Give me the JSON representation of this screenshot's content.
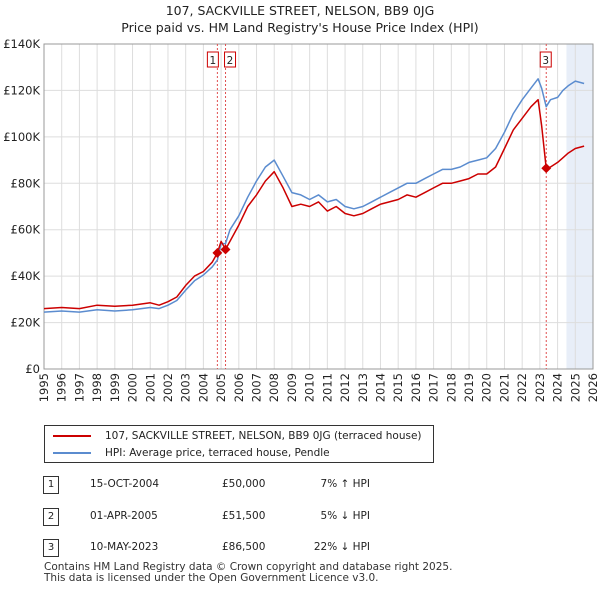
{
  "title": "107, SACKVILLE STREET, NELSON, BB9 0JG",
  "subtitle": "Price paid vs. HM Land Registry's House Price Index (HPI)",
  "colors": {
    "property": "#cc0000",
    "hpi": "#5b8ccf",
    "forecast_shade": "#e8eef8",
    "grid": "#dddddd"
  },
  "chart_data": {
    "type": "line",
    "title": "107, SACKVILLE STREET, NELSON, BB9 0JG",
    "subtitle": "Price paid vs. HM Land Registry's House Price Index (HPI)",
    "xlim": [
      1995,
      2026
    ],
    "ylim": [
      0,
      140000
    ],
    "y_ticks": [
      0,
      20000,
      40000,
      60000,
      80000,
      100000,
      120000,
      140000
    ],
    "y_tick_labels": [
      "£0",
      "£20K",
      "£40K",
      "£60K",
      "£80K",
      "£100K",
      "£120K",
      "£140K"
    ],
    "x_ticks": [
      1995,
      1996,
      1997,
      1998,
      1999,
      2000,
      2001,
      2002,
      2003,
      2004,
      2005,
      2006,
      2007,
      2008,
      2009,
      2010,
      2011,
      2012,
      2013,
      2014,
      2015,
      2016,
      2017,
      2018,
      2019,
      2020,
      2021,
      2022,
      2023,
      2024,
      2025,
      2026
    ],
    "x_tick_labels": [
      "1995",
      "1996",
      "1997",
      "1998",
      "1999",
      "2000",
      "2001",
      "2002",
      "2003",
      "2004",
      "2005",
      "2006",
      "2007",
      "2008",
      "2009",
      "2010",
      "2011",
      "2012",
      "2013",
      "2014",
      "2015",
      "2016",
      "2017",
      "2018",
      "2019",
      "2020",
      "2021",
      "2022",
      "2023",
      "2024",
      "2025",
      "2026"
    ],
    "forecast_region": [
      2024.5,
      2026
    ],
    "grid": true,
    "series": [
      {
        "name": "107, SACKVILLE STREET, NELSON, BB9 0JG (terraced house)",
        "color": "#cc0000",
        "x": [
          1995.0,
          1996.0,
          1997.0,
          1998.0,
          1999.0,
          2000.0,
          2001.0,
          2001.5,
          2002.0,
          2002.5,
          2003.0,
          2003.5,
          2004.0,
          2004.5,
          2004.79,
          2005.0,
          2005.25,
          2005.5,
          2006.0,
          2006.5,
          2007.0,
          2007.5,
          2008.0,
          2008.5,
          2009.0,
          2009.5,
          2010.0,
          2010.5,
          2011.0,
          2011.5,
          2012.0,
          2012.5,
          2013.0,
          2013.5,
          2014.0,
          2014.5,
          2015.0,
          2015.5,
          2016.0,
          2016.5,
          2017.0,
          2017.5,
          2018.0,
          2018.5,
          2019.0,
          2019.5,
          2020.0,
          2020.5,
          2021.0,
          2021.5,
          2022.0,
          2022.5,
          2022.9,
          2023.1,
          2023.36,
          2023.6,
          2024.0,
          2024.3,
          2024.6,
          2025.0,
          2025.5
        ],
        "values": [
          26000,
          26500,
          26000,
          27500,
          27000,
          27500,
          28500,
          27500,
          29000,
          31000,
          36000,
          40000,
          42000,
          46000,
          50000,
          55000,
          51500,
          55000,
          62000,
          70000,
          75000,
          81000,
          85000,
          78000,
          70000,
          71000,
          70000,
          72000,
          68000,
          70000,
          67000,
          66000,
          67000,
          69000,
          71000,
          72000,
          73000,
          75000,
          74000,
          76000,
          78000,
          80000,
          80000,
          81000,
          82000,
          84000,
          84000,
          87000,
          95000,
          103000,
          108000,
          113000,
          116000,
          105000,
          86500,
          87000,
          89000,
          91000,
          93000,
          95000,
          96000
        ]
      },
      {
        "name": "HPI: Average price, terraced house, Pendle",
        "color": "#5b8ccf",
        "x": [
          1995.0,
          1996.0,
          1997.0,
          1998.0,
          1999.0,
          2000.0,
          2001.0,
          2001.5,
          2002.0,
          2002.5,
          2003.0,
          2003.5,
          2004.0,
          2004.5,
          2004.79,
          2005.0,
          2005.25,
          2005.5,
          2006.0,
          2006.5,
          2007.0,
          2007.5,
          2008.0,
          2008.5,
          2009.0,
          2009.5,
          2010.0,
          2010.5,
          2011.0,
          2011.5,
          2012.0,
          2012.5,
          2013.0,
          2013.5,
          2014.0,
          2014.5,
          2015.0,
          2015.5,
          2016.0,
          2016.5,
          2017.0,
          2017.5,
          2018.0,
          2018.5,
          2019.0,
          2019.5,
          2020.0,
          2020.5,
          2021.0,
          2021.5,
          2022.0,
          2022.5,
          2022.9,
          2023.1,
          2023.36,
          2023.6,
          2024.0,
          2024.3,
          2024.6,
          2025.0,
          2025.5
        ],
        "values": [
          24500,
          25000,
          24500,
          25500,
          25000,
          25500,
          26500,
          26000,
          27500,
          29500,
          34000,
          38000,
          40500,
          44000,
          47000,
          54000,
          54000,
          60000,
          66000,
          74000,
          81000,
          87000,
          90000,
          83000,
          76000,
          75000,
          73000,
          75000,
          72000,
          73000,
          70000,
          69000,
          70000,
          72000,
          74000,
          76000,
          78000,
          80000,
          80000,
          82000,
          84000,
          86000,
          86000,
          87000,
          89000,
          90000,
          91000,
          95000,
          102000,
          110000,
          116000,
          121000,
          125000,
          121000,
          113000,
          116000,
          117000,
          120000,
          122000,
          124000,
          123000
        ]
      }
    ],
    "annotations": [
      {
        "label": "1",
        "x": 2004.79,
        "y": 50000
      },
      {
        "label": "2",
        "x": 2005.25,
        "y": 51500
      },
      {
        "label": "3",
        "x": 2023.36,
        "y": 86500
      }
    ]
  },
  "legend": {
    "items": [
      {
        "label": "107, SACKVILLE STREET, NELSON, BB9 0JG (terraced house)",
        "color": "#cc0000"
      },
      {
        "label": "HPI: Average price, terraced house, Pendle",
        "color": "#5b8ccf"
      }
    ]
  },
  "transactions": [
    {
      "num": "1",
      "date": "15-OCT-2004",
      "price": "£50,000",
      "hpi": "7% ↑ HPI"
    },
    {
      "num": "2",
      "date": "01-APR-2005",
      "price": "£51,500",
      "hpi": "5% ↓ HPI"
    },
    {
      "num": "3",
      "date": "10-MAY-2023",
      "price": "£86,500",
      "hpi": "22% ↓ HPI"
    }
  ],
  "footer": {
    "line1": "Contains HM Land Registry data © Crown copyright and database right 2025.",
    "line2": "This data is licensed under the Open Government Licence v3.0."
  }
}
